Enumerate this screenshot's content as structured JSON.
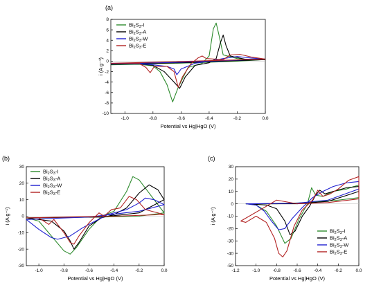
{
  "chart_data": [
    {
      "type": "line",
      "panel_label": "(a)",
      "xlabel": "Potential vs Hg|HgO (V)",
      "ylabel": "i (A g⁻¹)",
      "xlim": [
        -1.1,
        0.0
      ],
      "ylim": [
        -10,
        8
      ],
      "x_ticks": [
        -1.0,
        -0.8,
        -0.6,
        -0.4,
        -0.2,
        0.0
      ],
      "x_tick_labels": [
        "-1.0",
        "-0.8",
        "-0.6",
        "-0.4",
        "-0.2",
        "0.0"
      ],
      "y_ticks": [
        -10,
        -8,
        -6,
        -4,
        -2,
        0,
        2,
        4,
        6,
        8
      ],
      "y_tick_labels": [
        "-10",
        "-8",
        "-6",
        "-4",
        "-2",
        "0",
        "2",
        "4",
        "6",
        "8"
      ],
      "legend_position": "top-left",
      "series": [
        {
          "name": "Bi2S3-I",
          "color": "#2e8b2e",
          "points": [
            [
              -1.1,
              -0.7
            ],
            [
              -0.9,
              -0.6
            ],
            [
              -0.8,
              -0.9
            ],
            [
              -0.75,
              -2
            ],
            [
              -0.7,
              -4.5
            ],
            [
              -0.66,
              -7.8
            ],
            [
              -0.62,
              -5
            ],
            [
              -0.55,
              -1.2
            ],
            [
              -0.45,
              -0.4
            ],
            [
              -0.4,
              1
            ],
            [
              -0.37,
              6.2
            ],
            [
              -0.35,
              7.3
            ],
            [
              -0.33,
              5
            ],
            [
              -0.3,
              1.2
            ],
            [
              -0.2,
              0.5
            ],
            [
              -0.1,
              0.3
            ],
            [
              0.0,
              0.3
            ],
            [
              -0.2,
              0.0
            ],
            [
              -0.5,
              -0.3
            ],
            [
              -0.8,
              -0.5
            ],
            [
              -1.1,
              -0.7
            ]
          ]
        },
        {
          "name": "Bi2S3-A",
          "color": "#000000",
          "points": [
            [
              -1.1,
              -0.6
            ],
            [
              -0.9,
              -0.5
            ],
            [
              -0.8,
              -0.8
            ],
            [
              -0.72,
              -2
            ],
            [
              -0.65,
              -4
            ],
            [
              -0.61,
              -5.2
            ],
            [
              -0.57,
              -3
            ],
            [
              -0.5,
              -0.8
            ],
            [
              -0.4,
              -0.3
            ],
            [
              -0.35,
              0.5
            ],
            [
              -0.32,
              3.5
            ],
            [
              -0.3,
              5
            ],
            [
              -0.28,
              3
            ],
            [
              -0.25,
              1
            ],
            [
              -0.15,
              0.4
            ],
            [
              0.0,
              0.3
            ],
            [
              -0.3,
              0.0
            ],
            [
              -0.6,
              -0.3
            ],
            [
              -1.1,
              -0.6
            ]
          ]
        },
        {
          "name": "Bi2S3-W",
          "color": "#1f1fd0",
          "points": [
            [
              -1.1,
              -0.5
            ],
            [
              -0.9,
              -0.5
            ],
            [
              -0.8,
              -0.7
            ],
            [
              -0.7,
              -1
            ],
            [
              -0.65,
              -1.5
            ],
            [
              -0.63,
              -2.6
            ],
            [
              -0.6,
              -1.5
            ],
            [
              -0.5,
              -0.4
            ],
            [
              -0.4,
              0
            ],
            [
              -0.3,
              0.5
            ],
            [
              -0.2,
              0.9
            ],
            [
              -0.1,
              0.6
            ],
            [
              0.0,
              0.4
            ],
            [
              -0.3,
              0.1
            ],
            [
              -0.6,
              -0.2
            ],
            [
              -1.1,
              -0.5
            ]
          ]
        },
        {
          "name": "Bi2S3-E",
          "color": "#b22222",
          "points": [
            [
              -1.1,
              -0.4
            ],
            [
              -0.9,
              -0.4
            ],
            [
              -0.85,
              -1.2
            ],
            [
              -0.82,
              -2.2
            ],
            [
              -0.79,
              -1
            ],
            [
              -0.7,
              -1
            ],
            [
              -0.65,
              -2
            ],
            [
              -0.62,
              -5
            ],
            [
              -0.59,
              -3
            ],
            [
              -0.53,
              -0.5
            ],
            [
              -0.48,
              0.6
            ],
            [
              -0.45,
              1
            ],
            [
              -0.42,
              0.5
            ],
            [
              -0.3,
              0.3
            ],
            [
              -0.25,
              1.2
            ],
            [
              -0.18,
              1.3
            ],
            [
              -0.1,
              0.8
            ],
            [
              0.0,
              0.4
            ],
            [
              -0.4,
              0.1
            ],
            [
              -0.8,
              -0.2
            ],
            [
              -1.1,
              -0.4
            ]
          ]
        }
      ]
    },
    {
      "type": "line",
      "panel_label": "(b)",
      "xlabel": "Potential vs Hg|HgO (V)",
      "ylabel": "i (A g⁻¹)",
      "xlim": [
        -1.1,
        0.0
      ],
      "ylim": [
        -30,
        30
      ],
      "x_ticks": [
        -1.0,
        -0.8,
        -0.6,
        -0.4,
        -0.2,
        0.0
      ],
      "x_tick_labels": [
        "-1.0",
        "-0.8",
        "-0.6",
        "-0.4",
        "-0.2",
        "0.0"
      ],
      "y_ticks": [
        -30,
        -20,
        -10,
        0,
        10,
        20,
        30
      ],
      "y_tick_labels": [
        "-30",
        "-20",
        "-10",
        "0",
        "10",
        "20",
        "30"
      ],
      "legend_position": "top-left",
      "series": [
        {
          "name": "Bi2S3-I",
          "color": "#2e8b2e",
          "points": [
            [
              -1.1,
              -1
            ],
            [
              -1.0,
              -3
            ],
            [
              -0.9,
              -12
            ],
            [
              -0.8,
              -21
            ],
            [
              -0.75,
              -23
            ],
            [
              -0.7,
              -19
            ],
            [
              -0.6,
              -8
            ],
            [
              -0.5,
              0
            ],
            [
              -0.4,
              3
            ],
            [
              -0.3,
              15
            ],
            [
              -0.25,
              24
            ],
            [
              -0.2,
              22
            ],
            [
              -0.1,
              12
            ],
            [
              0.0,
              2
            ],
            [
              -0.2,
              0
            ],
            [
              -0.5,
              -0.5
            ],
            [
              -1.1,
              -1
            ]
          ]
        },
        {
          "name": "Bi2S3-A",
          "color": "#000000",
          "points": [
            [
              -1.1,
              -1
            ],
            [
              -0.9,
              -3
            ],
            [
              -0.8,
              -9
            ],
            [
              -0.75,
              -15
            ],
            [
              -0.72,
              -20
            ],
            [
              -0.68,
              -16
            ],
            [
              -0.6,
              -6
            ],
            [
              -0.5,
              -1
            ],
            [
              -0.4,
              1
            ],
            [
              -0.3,
              5
            ],
            [
              -0.2,
              14
            ],
            [
              -0.12,
              19
            ],
            [
              -0.05,
              16
            ],
            [
              0.0,
              10
            ],
            [
              -0.2,
              2
            ],
            [
              -0.5,
              -0.5
            ],
            [
              -1.1,
              -1
            ]
          ]
        },
        {
          "name": "Bi2S3-W",
          "color": "#1f1fd0",
          "points": [
            [
              -1.1,
              -2
            ],
            [
              -1.0,
              -8
            ],
            [
              -0.9,
              -13
            ],
            [
              -0.85,
              -14
            ],
            [
              -0.75,
              -12
            ],
            [
              -0.65,
              -7
            ],
            [
              -0.55,
              -3
            ],
            [
              -0.45,
              1
            ],
            [
              -0.3,
              4
            ],
            [
              -0.2,
              8
            ],
            [
              -0.15,
              11
            ],
            [
              -0.08,
              10
            ],
            [
              0.0,
              7
            ],
            [
              -0.2,
              3
            ],
            [
              -0.6,
              -0.5
            ],
            [
              -1.1,
              -2
            ]
          ]
        },
        {
          "name": "Bi2S3-E",
          "color": "#b22222",
          "points": [
            [
              -1.1,
              -1
            ],
            [
              -1.0,
              -1
            ],
            [
              -0.92,
              -5
            ],
            [
              -0.88,
              -2
            ],
            [
              -0.8,
              -10
            ],
            [
              -0.75,
              -16
            ],
            [
              -0.72,
              -17
            ],
            [
              -0.68,
              -12
            ],
            [
              -0.6,
              -4
            ],
            [
              -0.52,
              2
            ],
            [
              -0.48,
              0
            ],
            [
              -0.42,
              4
            ],
            [
              -0.35,
              5
            ],
            [
              -0.28,
              12
            ],
            [
              -0.22,
              10
            ],
            [
              -0.15,
              4
            ],
            [
              -0.05,
              2
            ],
            [
              0.0,
              1
            ],
            [
              -0.4,
              0
            ],
            [
              -1.1,
              -1
            ]
          ]
        }
      ]
    },
    {
      "type": "line",
      "panel_label": "(c)",
      "xlabel": "Potential vs Hg|HgO (V)",
      "ylabel": "i (A g⁻¹)",
      "xlim": [
        -1.2,
        0.0
      ],
      "ylim": [
        -50,
        30
      ],
      "x_ticks": [
        -1.2,
        -1.0,
        -0.8,
        -0.6,
        -0.4,
        -0.2,
        0.0
      ],
      "x_tick_labels": [
        "-1.2",
        "-1.0",
        "-0.8",
        "-0.6",
        "-0.4",
        "-0.2",
        "0.0"
      ],
      "y_ticks": [
        -50,
        -40,
        -30,
        -20,
        -10,
        0,
        10,
        20,
        30
      ],
      "y_tick_labels": [
        "-50",
        "-40",
        "-30",
        "-20",
        "-10",
        "0",
        "10",
        "20",
        "30"
      ],
      "legend_position": "bottom-right",
      "series": [
        {
          "name": "Bi2S3-I",
          "color": "#2e8b2e",
          "points": [
            [
              -1.1,
              0
            ],
            [
              -1.0,
              -1
            ],
            [
              -0.9,
              -6
            ],
            [
              -0.8,
              -18
            ],
            [
              -0.72,
              -32
            ],
            [
              -0.66,
              -28
            ],
            [
              -0.58,
              -12
            ],
            [
              -0.5,
              0
            ],
            [
              -0.46,
              13
            ],
            [
              -0.42,
              7
            ],
            [
              -0.35,
              6
            ],
            [
              -0.25,
              10
            ],
            [
              -0.12,
              12
            ],
            [
              -0.05,
              14
            ],
            [
              0.0,
              15
            ],
            [
              0.0,
              5
            ],
            [
              -0.2,
              3
            ],
            [
              -0.5,
              1
            ],
            [
              -0.8,
              0
            ],
            [
              -1.1,
              0
            ]
          ]
        },
        {
          "name": "Bi2S3-A",
          "color": "#000000",
          "points": [
            [
              -1.1,
              0
            ],
            [
              -0.9,
              -1
            ],
            [
              -0.8,
              -4
            ],
            [
              -0.72,
              -14
            ],
            [
              -0.67,
              -25
            ],
            [
              -0.62,
              -22
            ],
            [
              -0.55,
              -10
            ],
            [
              -0.48,
              -2
            ],
            [
              -0.42,
              7
            ],
            [
              -0.38,
              11
            ],
            [
              -0.33,
              8
            ],
            [
              -0.25,
              10
            ],
            [
              -0.12,
              13
            ],
            [
              0.0,
              14
            ],
            [
              0.0,
              10
            ],
            [
              -0.3,
              2
            ],
            [
              -0.6,
              0
            ],
            [
              -1.1,
              0
            ]
          ]
        },
        {
          "name": "Bi2S3-W",
          "color": "#1f1fd0",
          "points": [
            [
              -1.1,
              0
            ],
            [
              -1.0,
              -1
            ],
            [
              -0.92,
              -6
            ],
            [
              -0.85,
              -14
            ],
            [
              -0.78,
              -21
            ],
            [
              -0.72,
              -20
            ],
            [
              -0.65,
              -12
            ],
            [
              -0.55,
              -3
            ],
            [
              -0.45,
              5
            ],
            [
              -0.35,
              10
            ],
            [
              -0.25,
              14
            ],
            [
              -0.12,
              17
            ],
            [
              0.0,
              18
            ],
            [
              0.0,
              12
            ],
            [
              -0.3,
              3
            ],
            [
              -0.6,
              0.5
            ],
            [
              -1.1,
              0
            ]
          ]
        },
        {
          "name": "Bi2S3-E",
          "color": "#b22222",
          "points": [
            [
              -1.15,
              -14
            ],
            [
              -1.1,
              -15
            ],
            [
              -1.0,
              -10
            ],
            [
              -0.9,
              -15
            ],
            [
              -0.82,
              -28
            ],
            [
              -0.78,
              -40
            ],
            [
              -0.74,
              -43
            ],
            [
              -0.7,
              -38
            ],
            [
              -0.63,
              -18
            ],
            [
              -0.55,
              -5
            ],
            [
              -0.45,
              3
            ],
            [
              -0.4,
              11
            ],
            [
              -0.35,
              6
            ],
            [
              -0.28,
              8
            ],
            [
              -0.2,
              12
            ],
            [
              -0.1,
              19
            ],
            [
              0.0,
              22
            ],
            [
              0.0,
              4
            ],
            [
              -0.3,
              1
            ],
            [
              -0.6,
              0
            ],
            [
              -0.8,
              3
            ],
            [
              -0.9,
              -2
            ],
            [
              -1.15,
              -14
            ]
          ]
        }
      ]
    }
  ]
}
